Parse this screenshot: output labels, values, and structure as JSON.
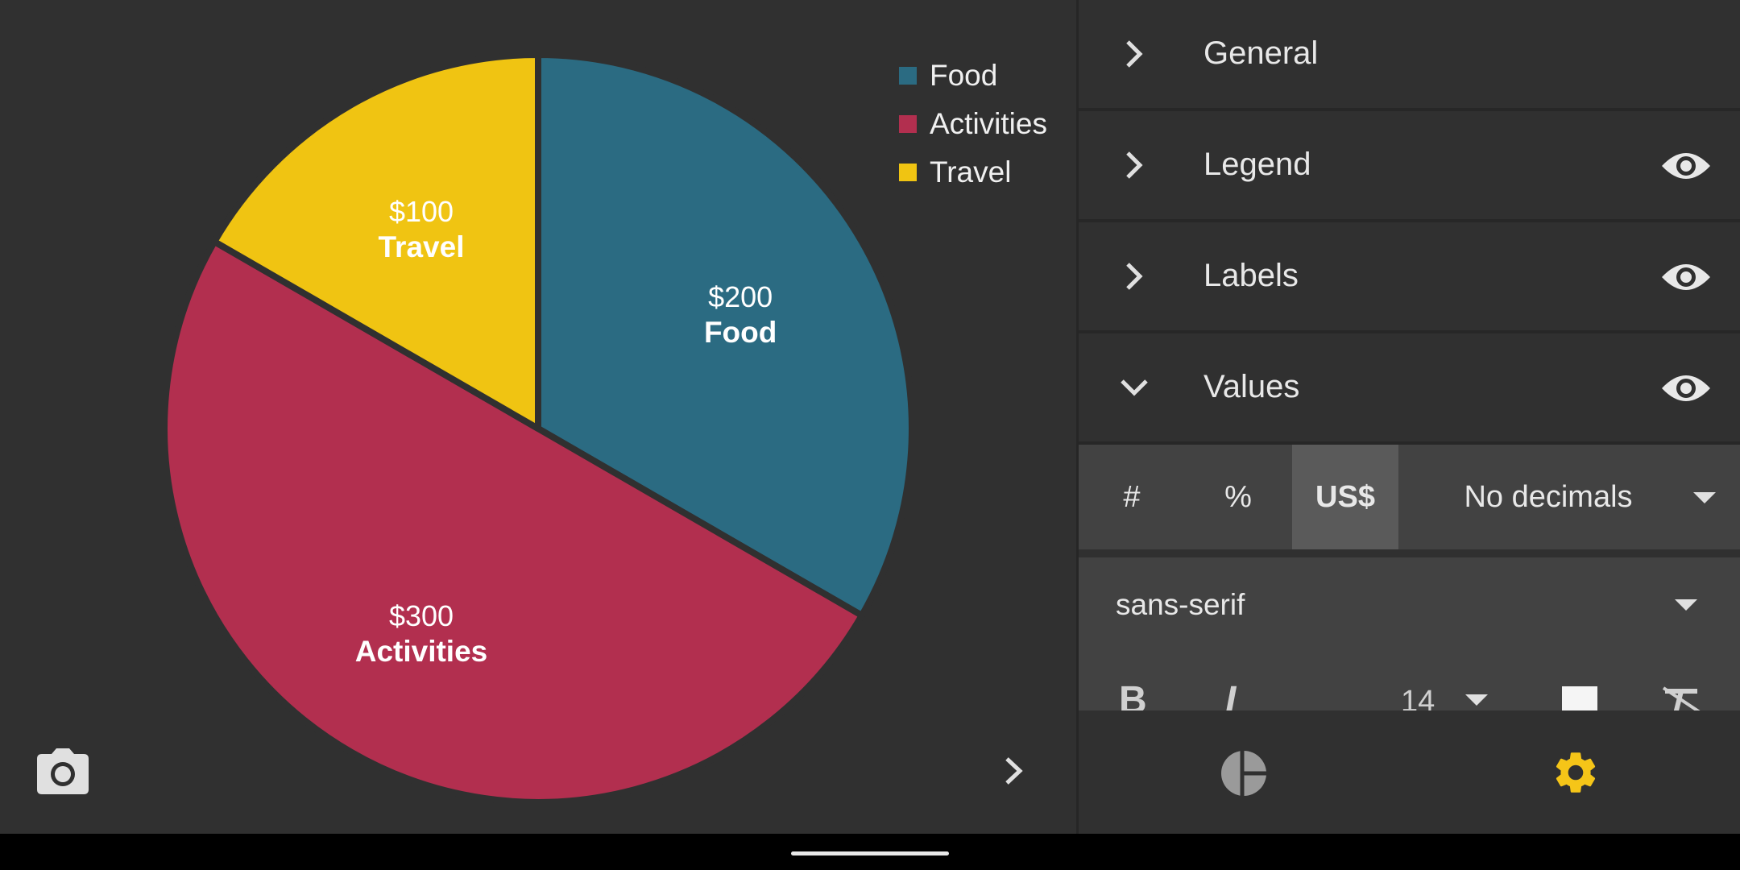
{
  "chart_data": {
    "type": "pie",
    "slices": [
      {
        "label": "Food",
        "value": 200,
        "value_text": "$200",
        "color": "#2b6b82"
      },
      {
        "label": "Activities",
        "value": 300,
        "value_text": "$300",
        "color": "#b22f4f"
      },
      {
        "label": "Travel",
        "value": 100,
        "value_text": "$100",
        "color": "#f0c412"
      }
    ],
    "legend": {
      "placement": "top-right",
      "entries": [
        "Food",
        "Activities",
        "Travel"
      ]
    },
    "start_angle_deg": 0,
    "direction": "clockwise"
  },
  "colors": {
    "background": "#303030",
    "accent": "#f5c518",
    "panel": "#424242",
    "selected": "#5a5a5a"
  },
  "settings": {
    "sections": [
      {
        "title": "General",
        "expanded": false,
        "visibility_icon": false
      },
      {
        "title": "Legend",
        "expanded": false,
        "visibility_icon": true
      },
      {
        "title": "Labels",
        "expanded": false,
        "visibility_icon": true
      },
      {
        "title": "Values",
        "expanded": true,
        "visibility_icon": true
      }
    ],
    "values": {
      "format_options": [
        "#",
        "%",
        "US$"
      ],
      "selected_format": "US$",
      "decimals": "No decimals"
    },
    "font": {
      "family": "sans-serif",
      "bold_label": "B",
      "italic_label": "I",
      "size": "14"
    }
  },
  "icons": {
    "camera": "camera-icon",
    "next": "chevron-right-icon",
    "visibility": "eye-icon",
    "chart_tab": "pie-chart-icon",
    "settings_tab": "gear-icon"
  }
}
